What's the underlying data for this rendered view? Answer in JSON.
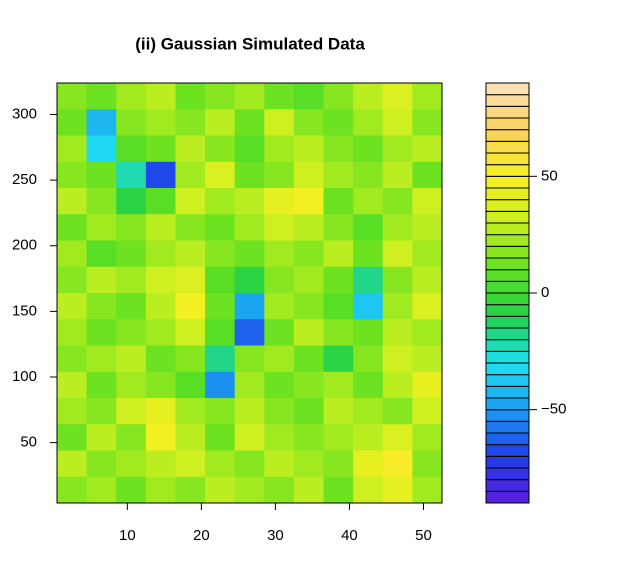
{
  "chart_data": {
    "type": "heatmap",
    "title": "(ii) Gaussian Simulated Data",
    "x": [
      2.5,
      6.5,
      10.5,
      14.5,
      18.5,
      22.5,
      26.5,
      30.5,
      34.5,
      38.5,
      42.5,
      46.5,
      50.5
    ],
    "y": [
      314,
      294,
      274,
      254,
      234,
      214,
      194,
      174,
      154,
      134,
      114,
      94,
      74,
      54,
      34,
      14
    ],
    "z": [
      [
        15,
        10,
        20,
        25,
        10,
        15,
        20,
        10,
        5,
        15,
        25,
        35,
        20
      ],
      [
        10,
        -45,
        15,
        20,
        15,
        25,
        10,
        30,
        15,
        10,
        20,
        30,
        15
      ],
      [
        20,
        -35,
        5,
        10,
        25,
        15,
        5,
        20,
        25,
        15,
        10,
        20,
        25
      ],
      [
        15,
        10,
        -25,
        -70,
        20,
        35,
        10,
        15,
        30,
        20,
        15,
        25,
        10
      ],
      [
        25,
        15,
        -10,
        5,
        30,
        20,
        25,
        40,
        45,
        10,
        20,
        15,
        30
      ],
      [
        10,
        20,
        15,
        25,
        15,
        10,
        20,
        30,
        25,
        15,
        5,
        20,
        25
      ],
      [
        20,
        5,
        10,
        20,
        25,
        15,
        10,
        20,
        15,
        25,
        10,
        30,
        20
      ],
      [
        15,
        25,
        20,
        30,
        35,
        5,
        -10,
        15,
        20,
        10,
        -20,
        15,
        25
      ],
      [
        25,
        15,
        10,
        25,
        45,
        10,
        -50,
        20,
        15,
        5,
        -40,
        20,
        35
      ],
      [
        20,
        10,
        15,
        20,
        30,
        5,
        -65,
        10,
        25,
        15,
        10,
        25,
        20
      ],
      [
        15,
        20,
        25,
        10,
        15,
        -20,
        15,
        20,
        10,
        -10,
        15,
        30,
        25
      ],
      [
        25,
        10,
        20,
        15,
        5,
        -55,
        20,
        10,
        15,
        20,
        10,
        25,
        40
      ],
      [
        20,
        15,
        30,
        40,
        20,
        15,
        25,
        15,
        10,
        25,
        20,
        15,
        30
      ],
      [
        10,
        25,
        15,
        45,
        25,
        10,
        30,
        20,
        15,
        20,
        25,
        35,
        20
      ],
      [
        25,
        15,
        20,
        25,
        30,
        20,
        15,
        25,
        20,
        15,
        40,
        50,
        15
      ],
      [
        15,
        20,
        10,
        20,
        15,
        25,
        20,
        15,
        25,
        10,
        30,
        40,
        20
      ]
    ],
    "xlim": [
      0.5,
      52.5
    ],
    "xticks": [
      10,
      20,
      30,
      40,
      50
    ],
    "ylim": [
      4,
      324
    ],
    "yticks": [
      50,
      100,
      150,
      200,
      250,
      300
    ],
    "zlim": [
      -90,
      90
    ],
    "zticks": [
      {
        "value": -50,
        "label": "−50"
      },
      0,
      50
    ],
    "levels": 36,
    "colors": [
      "#5a1ee0",
      "#1f3ee8",
      "#1c9cf0",
      "#1fe0f2",
      "#22d04a",
      "#5fe020",
      "#c8f020",
      "#f8f020",
      "#f8d060",
      "#fde2bc"
    ]
  }
}
